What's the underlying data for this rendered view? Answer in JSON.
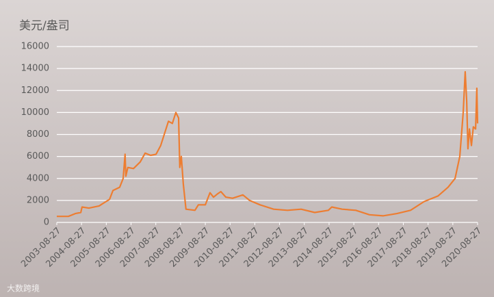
{
  "chart_data": {
    "type": "line",
    "y_label": "美元/盎司",
    "watermark": "大数跨境",
    "x": [
      2003.65,
      2004.12,
      2004.4,
      2004.62,
      2004.67,
      2004.95,
      2005.36,
      2005.5,
      2005.78,
      2005.92,
      2006.19,
      2006.33,
      2006.41,
      2006.44,
      2006.52,
      2006.75,
      2007.02,
      2007.22,
      2007.44,
      2007.66,
      2007.85,
      2008.16,
      2008.32,
      2008.46,
      2008.57,
      2008.62,
      2008.68,
      2008.76,
      2008.87,
      2009.23,
      2009.37,
      2009.65,
      2009.84,
      2009.98,
      2010.15,
      2010.28,
      2010.48,
      2010.75,
      2011.17,
      2011.44,
      2011.86,
      2012.41,
      2012.97,
      2013.52,
      2014.07,
      2014.62,
      2014.76,
      2015.18,
      2015.73,
      2016.28,
      2016.83,
      2017.39,
      2017.94,
      2018.49,
      2019.05,
      2019.46,
      2019.74,
      2019.93,
      2020.07,
      2020.15,
      2020.21,
      2020.26,
      2020.32,
      2020.4,
      2020.48,
      2020.57,
      2020.62,
      2020.65
    ],
    "series": [
      {
        "color": "#ed7d31",
        "values": [
          550,
          550,
          800,
          900,
          1400,
          1300,
          1500,
          1700,
          2100,
          2900,
          3200,
          4000,
          6200,
          4200,
          5000,
          4900,
          5500,
          6300,
          6100,
          6200,
          7000,
          9200,
          9000,
          10000,
          9500,
          5000,
          6000,
          3500,
          1200,
          1100,
          1600,
          1600,
          2700,
          2300,
          2600,
          2800,
          2300,
          2200,
          2500,
          2000,
          1600,
          1200,
          1100,
          1200,
          900,
          1100,
          1400,
          1200,
          1100,
          700,
          600,
          800,
          1100,
          1900,
          2400,
          3200,
          4000,
          6000,
          10000,
          13700,
          11000,
          6700,
          8500,
          7000,
          8700,
          8500,
          12200,
          9000
        ]
      }
    ],
    "xlim": [
      2003.65,
      2020.65
    ],
    "xticks": [
      {
        "value": 2003.65,
        "label": "2003-08-27"
      },
      {
        "value": 2004.65,
        "label": "2004-08-27"
      },
      {
        "value": 2005.65,
        "label": "2005-08-27"
      },
      {
        "value": 2006.65,
        "label": "2006-08-27"
      },
      {
        "value": 2007.65,
        "label": "2007-08-27"
      },
      {
        "value": 2008.65,
        "label": "2008-08-27"
      },
      {
        "value": 2009.65,
        "label": "2009-08-27"
      },
      {
        "value": 2010.65,
        "label": "2010-08-27"
      },
      {
        "value": 2011.65,
        "label": "2011-08-27"
      },
      {
        "value": 2012.65,
        "label": "2012-08-27"
      },
      {
        "value": 2013.65,
        "label": "2013-08-27"
      },
      {
        "value": 2014.65,
        "label": "2014-08-27"
      },
      {
        "value": 2015.65,
        "label": "2015-08-27"
      },
      {
        "value": 2016.65,
        "label": "2016-08-27"
      },
      {
        "value": 2017.65,
        "label": "2017-08-27"
      },
      {
        "value": 2018.65,
        "label": "2018-08-27"
      },
      {
        "value": 2019.65,
        "label": "2019-08-27"
      },
      {
        "value": 2020.65,
        "label": "2020-08-27"
      }
    ],
    "ylim": [
      0,
      16000
    ],
    "yticks": [
      0,
      2000,
      4000,
      6000,
      8000,
      10000,
      12000,
      14000,
      16000
    ],
    "grid": true
  }
}
